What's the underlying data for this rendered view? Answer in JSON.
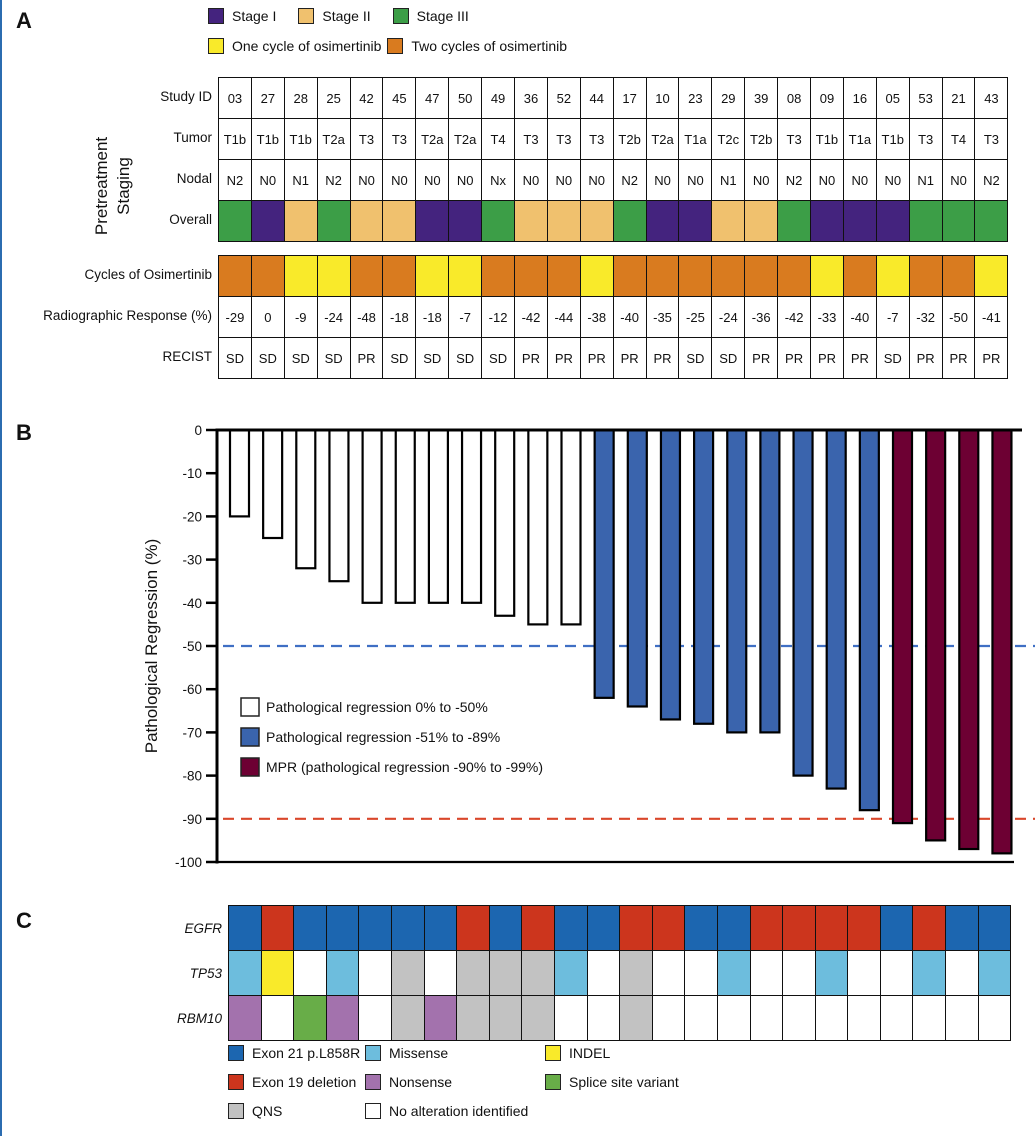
{
  "panels": {
    "a": "A",
    "b": "B",
    "c": "C"
  },
  "colors": {
    "stage_I": "#44237e",
    "stage_II": "#f0c16e",
    "stage_III": "#3c9e47",
    "one_cycle": "#f9ea2a",
    "two_cycles": "#d97b1f",
    "bar_white": "#ffffff",
    "bar_blue": "#3a64ad",
    "bar_mpr": "#6d0033",
    "line_blue": "#3f6fc4",
    "line_red": "#d9472b",
    "exon21": "#1c66b0",
    "exon19": "#cc351d",
    "missense": "#6dbddd",
    "nonsense": "#a372ad",
    "indel": "#f9ea2a",
    "splice": "#68ad48",
    "qns": "#c2c2c2",
    "none": "#ffffff"
  },
  "panel_a": {
    "legend": [
      {
        "key": "stage_I",
        "label": "Stage I"
      },
      {
        "key": "stage_II",
        "label": "Stage II"
      },
      {
        "key": "stage_III",
        "label": "Stage III"
      },
      {
        "key": "one_cycle",
        "label": "One cycle of osimertinib"
      },
      {
        "key": "two_cycles",
        "label": "Two cycles of osimertinib"
      }
    ],
    "group_label_line1": "Pretreatment",
    "group_label_line2": "Staging",
    "row_labels": {
      "study_id": "Study ID",
      "tumor": "Tumor",
      "nodal": "Nodal",
      "overall": "Overall",
      "cycles": "Cycles of Osimertinib",
      "radiographic": "Radiographic Response (%)",
      "recist": "RECIST"
    },
    "study_id": [
      "03",
      "27",
      "28",
      "25",
      "42",
      "45",
      "47",
      "50",
      "49",
      "36",
      "52",
      "44",
      "17",
      "10",
      "23",
      "29",
      "39",
      "08",
      "09",
      "16",
      "05",
      "53",
      "21",
      "43"
    ],
    "tumor": [
      "T1b",
      "T1b",
      "T1b",
      "T2a",
      "T3",
      "T3",
      "T2a",
      "T2a",
      "T4",
      "T3",
      "T3",
      "T3",
      "T2b",
      "T2a",
      "T1a",
      "T2c",
      "T2b",
      "T3",
      "T1b",
      "T1a",
      "T1b",
      "T3",
      "T4",
      "T3"
    ],
    "nodal": [
      "N2",
      "N0",
      "N1",
      "N2",
      "N0",
      "N0",
      "N0",
      "N0",
      "Nx",
      "N0",
      "N0",
      "N0",
      "N2",
      "N0",
      "N0",
      "N1",
      "N0",
      "N2",
      "N0",
      "N0",
      "N0",
      "N1",
      "N0",
      "N2"
    ],
    "overall": [
      "III",
      "I",
      "II",
      "III",
      "II",
      "II",
      "I",
      "I",
      "III",
      "II",
      "II",
      "II",
      "III",
      "I",
      "I",
      "II",
      "II",
      "III",
      "I",
      "I",
      "I",
      "III",
      "III",
      "III"
    ],
    "cycles": [
      2,
      2,
      1,
      1,
      2,
      2,
      1,
      1,
      2,
      2,
      2,
      1,
      2,
      2,
      2,
      2,
      2,
      2,
      1,
      2,
      1,
      2,
      2,
      1
    ],
    "radiographic": [
      "-29",
      "0",
      "-9",
      "-24",
      "-48",
      "-18",
      "-18",
      "-7",
      "-12",
      "-42",
      "-44",
      "-38",
      "-40",
      "-35",
      "-25",
      "-24",
      "-36",
      "-42",
      "-33",
      "-40",
      "-7",
      "-32",
      "-50",
      "-41"
    ],
    "recist": [
      "SD",
      "SD",
      "SD",
      "SD",
      "PR",
      "SD",
      "SD",
      "SD",
      "SD",
      "PR",
      "PR",
      "PR",
      "PR",
      "PR",
      "SD",
      "SD",
      "PR",
      "PR",
      "PR",
      "PR",
      "SD",
      "PR",
      "PR",
      "PR"
    ]
  },
  "chart_data": {
    "type": "bar",
    "title": "",
    "xlabel": "",
    "ylabel": "Pathological Regression (%)",
    "ylim": [
      -100,
      0
    ],
    "yticks": [
      0,
      -10,
      -20,
      -30,
      -40,
      -50,
      -60,
      -70,
      -80,
      -90,
      -100
    ],
    "categories": [
      "03",
      "27",
      "28",
      "25",
      "42",
      "45",
      "47",
      "50",
      "49",
      "36",
      "52",
      "44",
      "17",
      "10",
      "23",
      "29",
      "39",
      "08",
      "09",
      "16",
      "05",
      "53",
      "21",
      "43"
    ],
    "values": [
      -20,
      -25,
      -32,
      -35,
      -40,
      -40,
      -40,
      -40,
      -43,
      -45,
      -45,
      -62,
      -64,
      -67,
      -68,
      -70,
      -70,
      -80,
      -83,
      -88,
      -91,
      -95,
      -97,
      -98
    ],
    "bar_class": [
      "white",
      "white",
      "white",
      "white",
      "white",
      "white",
      "white",
      "white",
      "white",
      "white",
      "white",
      "blue",
      "blue",
      "blue",
      "blue",
      "blue",
      "blue",
      "blue",
      "blue",
      "blue",
      "mpr",
      "mpr",
      "mpr",
      "mpr"
    ],
    "reference_lines": [
      {
        "y": -50,
        "color": "blue",
        "style": "dashed"
      },
      {
        "y": -90,
        "color": "red",
        "style": "dashed"
      }
    ],
    "legend": [
      {
        "key": "white",
        "label": "Pathological regression 0% to -50%"
      },
      {
        "key": "blue",
        "label": "Pathological regression -51% to -89%"
      },
      {
        "key": "mpr",
        "label": "MPR (pathological regression -90% to -99%)"
      }
    ],
    "legend_placement": "lower-left",
    "grid": false
  },
  "panel_c": {
    "genes": [
      {
        "name": "EGFR",
        "values": [
          "exon21",
          "exon19",
          "exon21",
          "exon21",
          "exon21",
          "exon21",
          "exon21",
          "exon19",
          "exon21",
          "exon19",
          "exon21",
          "exon21",
          "exon19",
          "exon19",
          "exon21",
          "exon21",
          "exon19",
          "exon19",
          "exon19",
          "exon19",
          "exon21",
          "exon19",
          "exon21",
          "exon21"
        ]
      },
      {
        "name": "TP53",
        "values": [
          "missense",
          "indel",
          "none",
          "missense",
          "none",
          "qns",
          "none",
          "qns",
          "qns",
          "qns",
          "missense",
          "none",
          "qns",
          "none",
          "none",
          "missense",
          "none",
          "none",
          "missense",
          "none",
          "none",
          "missense",
          "none",
          "missense"
        ]
      },
      {
        "name": "RBM10",
        "values": [
          "nonsense",
          "none",
          "splice",
          "nonsense",
          "none",
          "qns",
          "nonsense",
          "qns",
          "qns",
          "qns",
          "none",
          "none",
          "qns",
          "none",
          "none",
          "none",
          "none",
          "none",
          "none",
          "none",
          "none",
          "none",
          "none",
          "none"
        ]
      }
    ],
    "legend": [
      {
        "key": "exon21",
        "label": "Exon 21 p.L858R"
      },
      {
        "key": "missense",
        "label": "Missense"
      },
      {
        "key": "indel",
        "label": "INDEL"
      },
      {
        "key": "exon19",
        "label": "Exon 19 deletion"
      },
      {
        "key": "nonsense",
        "label": "Nonsense"
      },
      {
        "key": "splice",
        "label": "Splice site variant"
      },
      {
        "key": "qns",
        "label": "QNS"
      },
      {
        "key": "none",
        "label": "No alteration identified"
      }
    ]
  }
}
